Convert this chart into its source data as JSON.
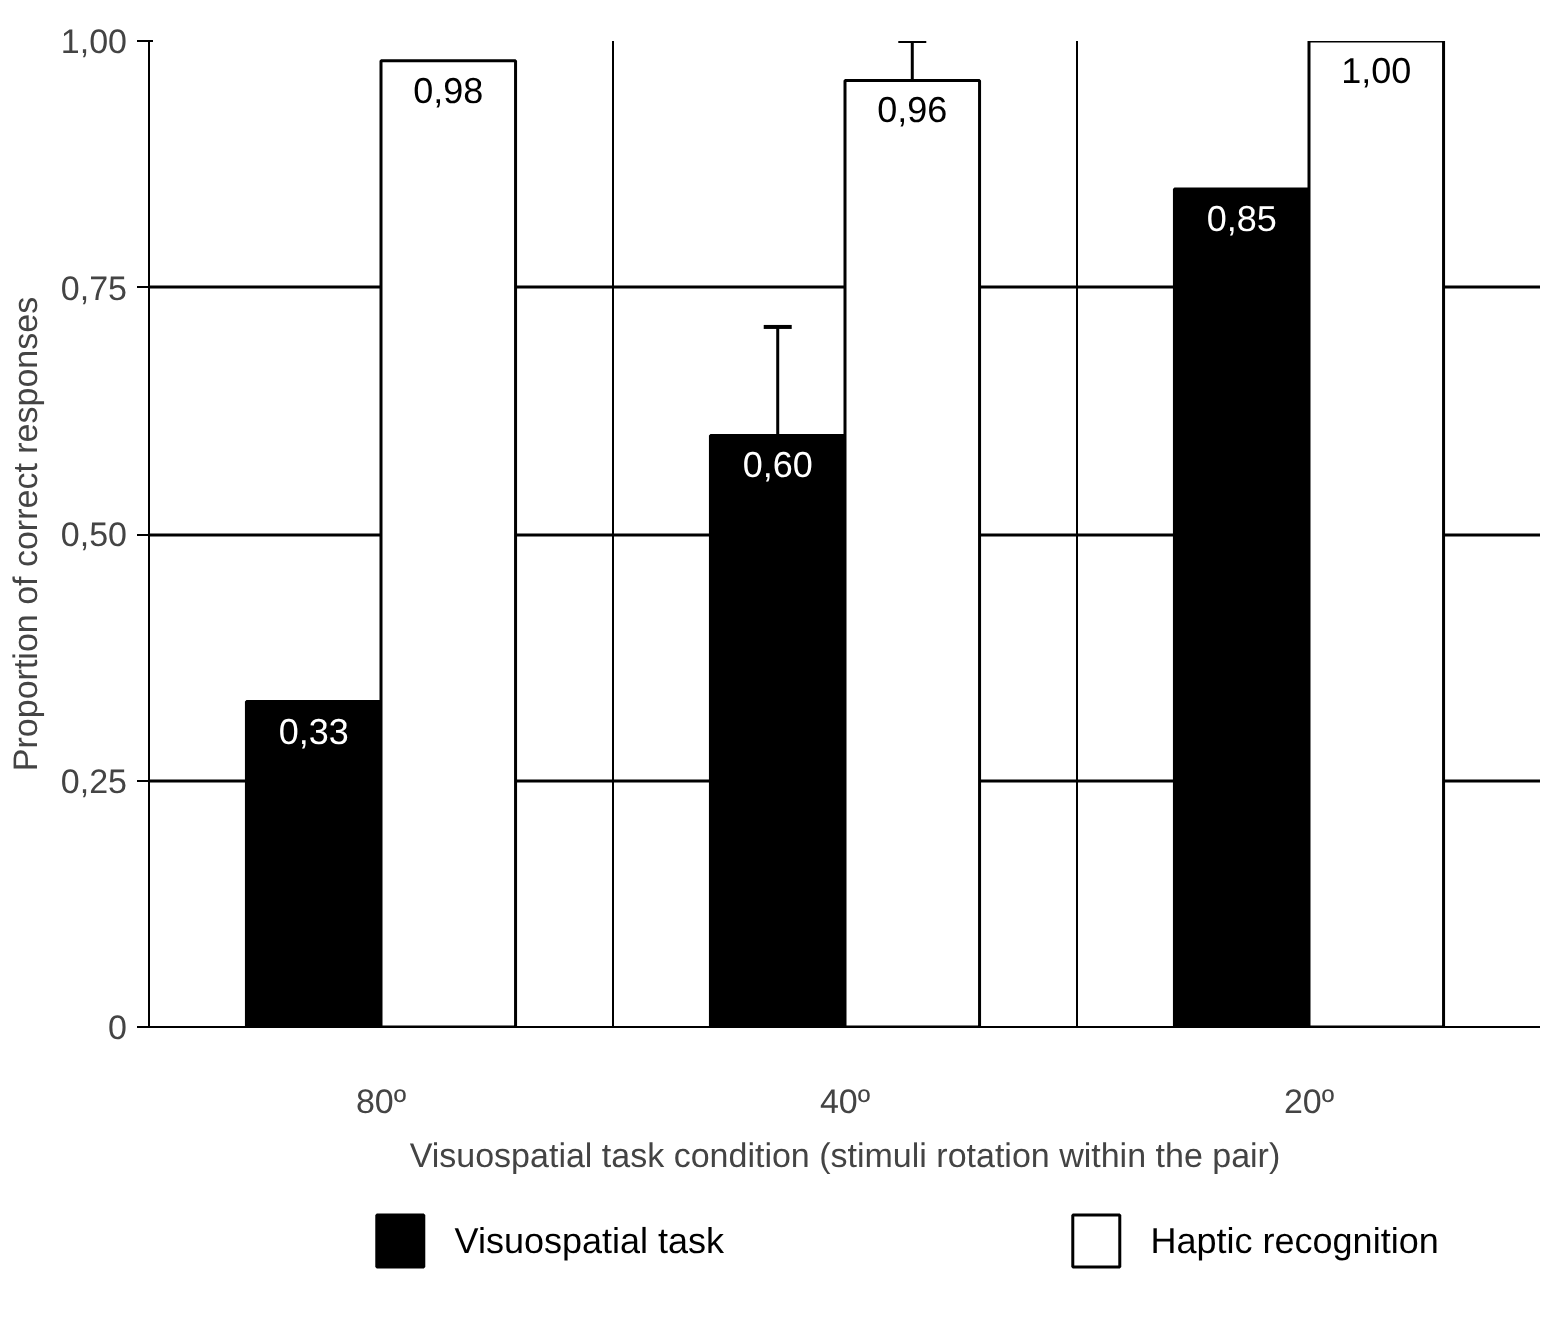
{
  "chart_data": {
    "type": "bar",
    "categories": [
      "80º",
      "40º",
      "20º"
    ],
    "series": [
      {
        "name": "Visuospatial task",
        "color": "#000000",
        "values": [
          0.33,
          0.6,
          0.85
        ],
        "value_labels": [
          "0,33",
          "0,60",
          "0,85"
        ],
        "errors": [
          null,
          0.11,
          null
        ]
      },
      {
        "name": "Haptic recognition",
        "color": "#ffffff",
        "values": [
          0.98,
          0.96,
          1.0
        ],
        "value_labels": [
          "0,98",
          "0,96",
          "1,00"
        ],
        "errors": [
          null,
          0.04,
          null
        ]
      }
    ],
    "xlabel": "Visuospatial task condition (stimuli rotation within the pair)",
    "ylabel": "Proportion of correct responses",
    "ylim": [
      0,
      1.0
    ],
    "yticks": [
      {
        "value": 0,
        "label": "0"
      },
      {
        "value": 0.25,
        "label": "0,25"
      },
      {
        "value": 0.5,
        "label": "0,50"
      },
      {
        "value": 0.75,
        "label": "0,75"
      },
      {
        "value": 1.0,
        "label": "1,00"
      }
    ],
    "grid": true,
    "legend": "bottom"
  }
}
